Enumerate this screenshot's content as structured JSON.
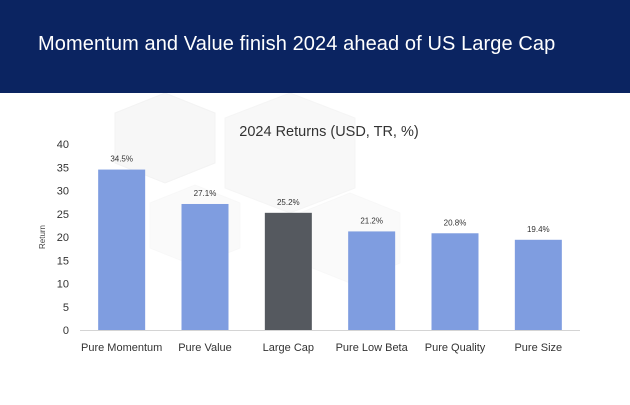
{
  "header": {
    "title": "Momentum and Value finish 2024 ahead of US Large Cap"
  },
  "colors": {
    "header_bg": "#0b2461",
    "bar_default": "#7f9de0",
    "bar_highlight": "#55595f",
    "text": "#333333"
  },
  "chart_data": {
    "type": "bar",
    "title": "2024 Returns (USD, TR, %)",
    "xlabel": "",
    "ylabel": "Return",
    "ylim": [
      0,
      40
    ],
    "yticks": [
      0,
      5,
      10,
      15,
      20,
      25,
      30,
      35,
      40
    ],
    "grid": false,
    "categories": [
      "Pure Momentum",
      "Pure Value",
      "Large Cap",
      "Pure Low Beta",
      "Pure Quality",
      "Pure Size"
    ],
    "values": [
      34.5,
      27.1,
      25.2,
      21.2,
      20.8,
      19.4
    ],
    "data_labels": [
      "34.5%",
      "27.1%",
      "25.2%",
      "21.2%",
      "20.8%",
      "19.4%"
    ],
    "highlight": [
      "Large Cap"
    ]
  }
}
